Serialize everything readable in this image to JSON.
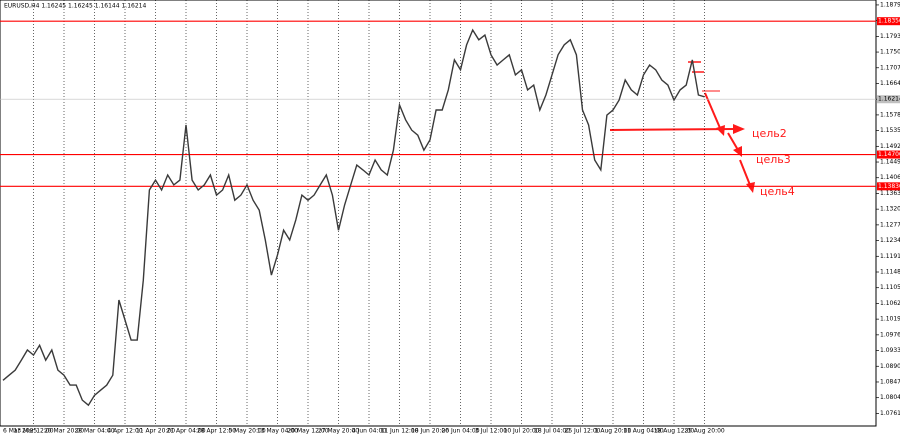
{
  "chart_data": {
    "type": "line",
    "title": "EURUSD,H4  1.16245 1.16245 1.16144 1.16214",
    "color": "#3a3a3a",
    "grid": true,
    "categories": [
      "6 Mar 2025",
      null,
      null,
      null,
      null,
      "13 Mar 12:00",
      null,
      null,
      null,
      null,
      "20 Mar 20:00",
      null,
      null,
      null,
      null,
      "28 Mar 04:00",
      null,
      null,
      null,
      null,
      "4 Apr 12:00",
      null,
      null,
      null,
      null,
      "11 Apr 20:00",
      null,
      null,
      null,
      null,
      "21 Apr 04:00",
      null,
      null,
      null,
      null,
      "28 Apr 12:00",
      null,
      null,
      null,
      null,
      "5 May 20:00",
      null,
      null,
      null,
      null,
      "13 May 04:00",
      null,
      null,
      null,
      null,
      "20 May 12:00",
      null,
      null,
      null,
      null,
      "27 May 20:00",
      null,
      null,
      null,
      null,
      "4 Jun 04:00",
      null,
      null,
      null,
      null,
      "11 Jun 12:00",
      null,
      null,
      null,
      null,
      "18 Jun 20:00",
      null,
      null,
      null,
      null,
      "26 Jun 04:00",
      null,
      null,
      null,
      null,
      "3 Jul 12:00",
      null,
      null,
      null,
      null,
      "10 Jul 20:00",
      null,
      null,
      null,
      null,
      "18 Jul 04:00",
      null,
      null,
      null,
      null,
      "25 Jul 12:00",
      null,
      null,
      null,
      null,
      "1 Aug 20:00",
      null,
      null,
      null,
      null,
      "11 Aug 04:00",
      null,
      null,
      null,
      null,
      "18 Aug 12:00",
      null,
      null,
      null,
      null,
      "25 Aug 20:00",
      null,
      null,
      null,
      null
    ],
    "values": [
      1.0852,
      1.0866,
      1.088,
      1.0907,
      1.0935,
      1.0921,
      1.0948,
      1.0907,
      1.0935,
      1.088,
      1.0866,
      1.0839,
      1.0839,
      1.0798,
      1.0784,
      1.0811,
      1.0825,
      1.0839,
      1.0866,
      1.1072,
      1.1017,
      1.0962,
      1.0962,
      1.1126,
      1.1373,
      1.14,
      1.1373,
      1.1414,
      1.1387,
      1.14,
      1.1551,
      1.14,
      1.1373,
      1.1387,
      1.1414,
      1.1359,
      1.1373,
      1.1414,
      1.1345,
      1.1359,
      1.1387,
      1.1345,
      1.1318,
      1.1236,
      1.114,
      1.1195,
      1.1263,
      1.1236,
      1.1291,
      1.1359,
      1.1345,
      1.1359,
      1.1387,
      1.1414,
      1.1359,
      1.1263,
      1.1332,
      1.1387,
      1.1441,
      1.1428,
      1.1414,
      1.1455,
      1.1428,
      1.1414,
      1.1482,
      1.1606,
      1.1565,
      1.1537,
      1.1523,
      1.1482,
      1.151,
      1.1592,
      1.1592,
      1.1647,
      1.1729,
      1.1702,
      1.177,
      1.1811,
      1.1784,
      1.1797,
      1.1743,
      1.1715,
      1.1729,
      1.1743,
      1.1688,
      1.1702,
      1.1647,
      1.166,
      1.1592,
      1.1633,
      1.1688,
      1.1743,
      1.177,
      1.1784,
      1.1743,
      1.1592,
      1.1551,
      1.1455,
      1.1428,
      1.1578,
      1.1592,
      1.1619,
      1.1674,
      1.1647,
      1.1633,
      1.1688,
      1.1715,
      1.1702,
      1.1674,
      1.166,
      1.1619,
      1.1647,
      1.166,
      1.1729,
      1.1633,
      1.1628,
      null,
      null,
      null,
      null
    ],
    "ylim": [
      1.0727,
      1.1893
    ],
    "yticks": [
      1.07615,
      1.08045,
      1.08475,
      1.08905,
      1.09335,
      1.09765,
      1.10195,
      1.10625,
      1.11055,
      1.11485,
      1.11915,
      1.12345,
      1.12775,
      1.13205,
      1.13635,
      1.14065,
      1.14495,
      1.14925,
      1.15355,
      1.15785,
      1.16215,
      1.16645,
      1.17075,
      1.17505,
      1.17935,
      1.18365,
      1.18795
    ],
    "levels": [
      {
        "value": 1.1835,
        "label": "1.18350",
        "color": "#ff0000"
      },
      {
        "value": 1.147,
        "label": "1.14700",
        "color": "#ff0000"
      },
      {
        "value": 1.1383,
        "label": "1.13830",
        "color": "#ff0000"
      }
    ],
    "price_line": {
      "value": 1.16214,
      "label": "1.16214",
      "color": "#c0c0c0"
    },
    "annotations": [
      "цель2",
      "цель3",
      "цель4"
    ]
  }
}
